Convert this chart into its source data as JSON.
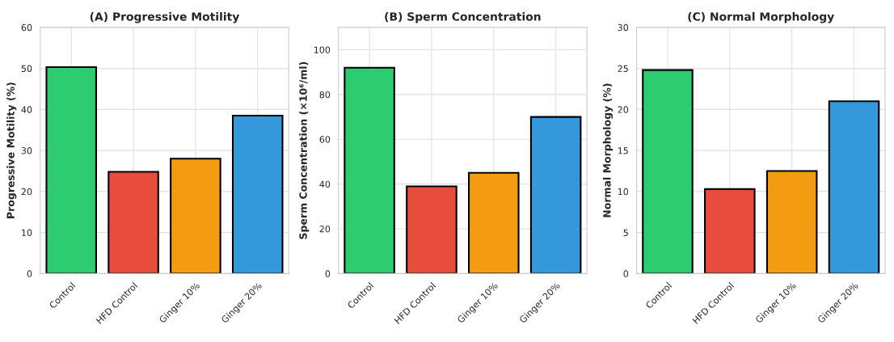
{
  "chart_data": [
    {
      "type": "bar",
      "title": "(A) Progressive Motility",
      "ylabel": "Progressive Motility (%)",
      "categories": [
        "Control",
        "HFD Control",
        "Ginger 10%",
        "Ginger 20%"
      ],
      "values": [
        50.3,
        24.8,
        28.0,
        38.5
      ],
      "colors": [
        "#2ecc71",
        "#e74c3c",
        "#f39c12",
        "#3498db"
      ],
      "ylim": [
        0,
        60
      ],
      "yticks": [
        0,
        10,
        20,
        30,
        40,
        50,
        60
      ],
      "grid": true
    },
    {
      "type": "bar",
      "title": "(B) Sperm Concentration",
      "ylabel": "Sperm Concentration (×10⁶/ml)",
      "categories": [
        "Control",
        "HFD Control",
        "Ginger 10%",
        "Ginger 20%"
      ],
      "values": [
        92,
        39,
        45,
        70
      ],
      "colors": [
        "#2ecc71",
        "#e74c3c",
        "#f39c12",
        "#3498db"
      ],
      "ylim": [
        0,
        110
      ],
      "yticks": [
        0,
        20,
        40,
        60,
        80,
        100
      ],
      "grid": true
    },
    {
      "type": "bar",
      "title": "(C) Normal Morphology",
      "ylabel": "Normal Morphology (%)",
      "categories": [
        "Control",
        "HFD Control",
        "Ginger 10%",
        "Ginger 20%"
      ],
      "values": [
        24.8,
        10.3,
        12.5,
        21.0
      ],
      "colors": [
        "#2ecc71",
        "#e74c3c",
        "#f39c12",
        "#3498db"
      ],
      "ylim": [
        0,
        30
      ],
      "yticks": [
        0,
        5,
        10,
        15,
        20,
        25,
        30
      ],
      "grid": true
    }
  ]
}
